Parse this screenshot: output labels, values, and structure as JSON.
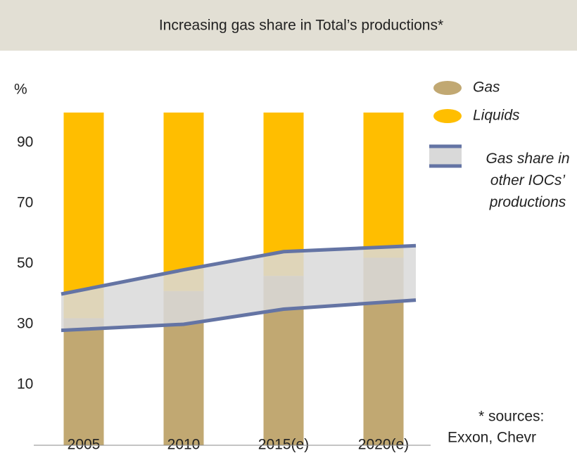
{
  "chart_data": {
    "type": "bar",
    "title": "Increasing gas share in Total’s productions*",
    "y_label": "%",
    "categories": [
      "2005",
      "2010",
      "2015(e)",
      "2020(e)"
    ],
    "series": [
      {
        "name": "Gas",
        "color": "#c1a872",
        "values": [
          32,
          41,
          46,
          52
        ]
      },
      {
        "name": "Liquids",
        "color": "#ffbe00",
        "values": [
          68,
          59,
          54,
          48
        ]
      }
    ],
    "band": {
      "name": "Gas share in other IOCs’ productions",
      "color": "#d9d9d9",
      "line_color": "#6474a4",
      "lower": [
        28,
        30,
        35,
        38
      ],
      "upper": [
        40,
        48,
        54,
        56
      ]
    },
    "ylim": [
      -10,
      100
    ],
    "yticks": [
      10,
      30,
      50,
      70,
      90
    ],
    "footnote": [
      "*  sources:",
      "Exxon, Chevr"
    ]
  }
}
